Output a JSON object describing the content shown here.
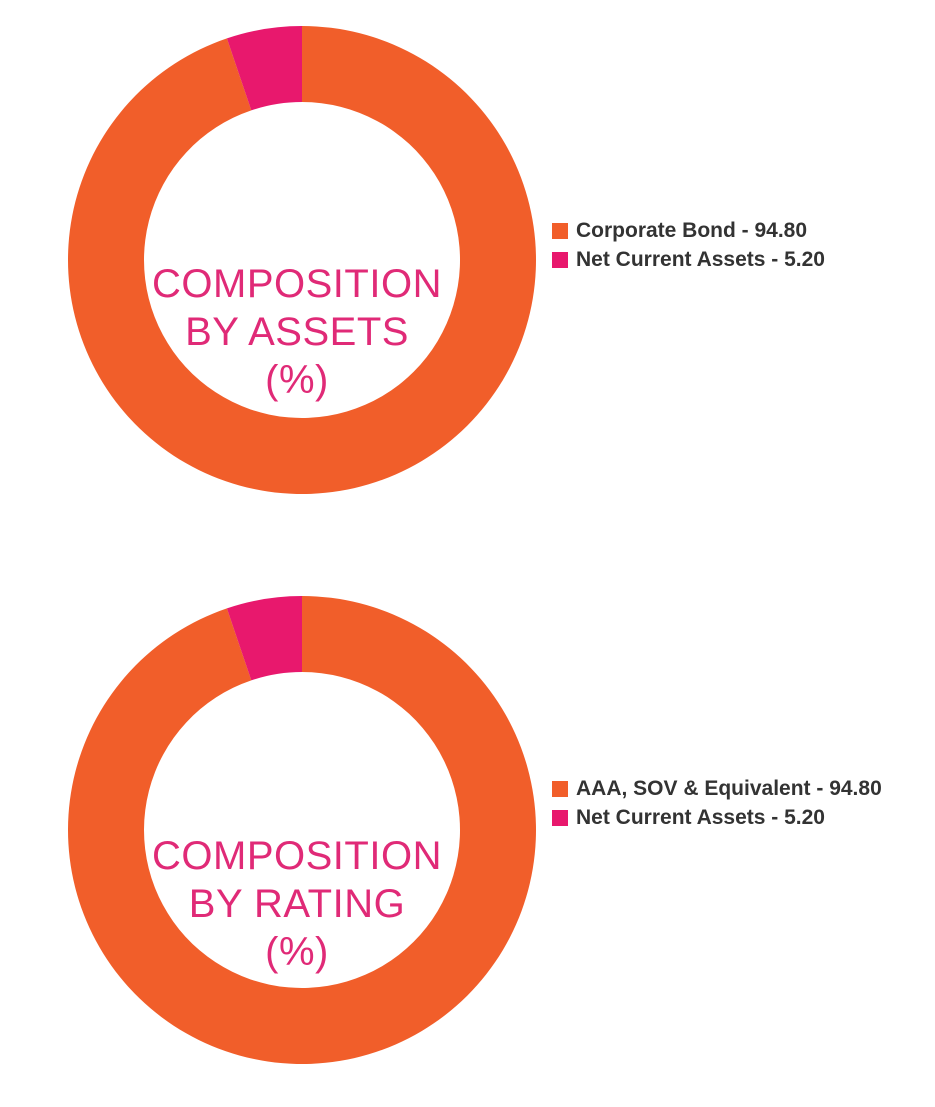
{
  "colors": {
    "primary_slice": "#f15e2a",
    "secondary_slice": "#e8186d",
    "title": "#e02a77",
    "legend_text": "#333333"
  },
  "chart_data": [
    {
      "type": "pie",
      "title_lines": [
        "COMPOSITION",
        "BY ASSETS",
        "(%)"
      ],
      "categories": [
        "Corporate Bond",
        "Net Current Assets"
      ],
      "values": [
        94.8,
        5.2
      ],
      "legend": [
        {
          "label": "Corporate Bond - 94.80",
          "color": "#f15e2a"
        },
        {
          "label": "Net Current Assets - 5.20",
          "color": "#e8186d"
        }
      ],
      "legend_position": "right"
    },
    {
      "type": "pie",
      "title_lines": [
        "COMPOSITION",
        "BY RATING",
        "(%)"
      ],
      "categories": [
        "AAA, SOV & Equivalent",
        "Net Current Assets"
      ],
      "values": [
        94.8,
        5.2
      ],
      "legend": [
        {
          "label": "AAA, SOV & Equivalent - 94.80",
          "color": "#f15e2a"
        },
        {
          "label": "Net Current Assets - 5.20",
          "color": "#e8186d"
        }
      ],
      "legend_position": "right"
    }
  ]
}
